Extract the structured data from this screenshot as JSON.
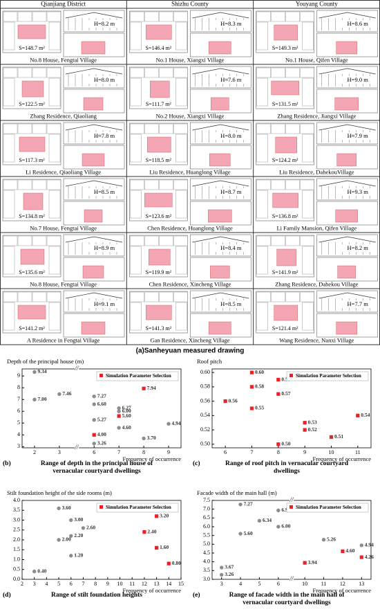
{
  "drawings": {
    "columns": [
      "Qianjiang District",
      "Shizhu County",
      "Youyang County"
    ],
    "cells": [
      [
        {
          "area": "S=148.7 m²",
          "height": "H=8.2 m",
          "name": "No.8 House, Fengtai Village"
        },
        {
          "area": "S=146.4 m²",
          "height": "H=8.3 m",
          "name": "No.1 House, Xiangxi Village"
        },
        {
          "area": "S=149.3 m²",
          "height": "H=8.6 m",
          "name": "No.1 House, Qifen Village"
        }
      ],
      [
        {
          "area": "S=122.5 m²",
          "height": "H=8.0 m",
          "name": "Zhang Residence, Qiaoliang"
        },
        {
          "area": "S=111.7 m²",
          "height": "H≈7.6 m",
          "name": "No.2 House, Xiangxi Village"
        },
        {
          "area": "S=131.5 m²",
          "height": "H=9.0 m",
          "name": "Zhang Residence, Jiangxi Village"
        }
      ],
      [
        {
          "area": "S=117.3 m²",
          "height": "H≈7.8 m",
          "name": "Li Residence, Qiaoliang Village"
        },
        {
          "area": "S=118.5 m²",
          "height": "H=8.0 m",
          "name": "Liu Residence, Huanglong Village"
        },
        {
          "area": "S=124.2 m²",
          "height": "H≈7.9 m",
          "name": "Liu Residence, DahekouVillage"
        }
      ],
      [
        {
          "area": "S=134.8 m²",
          "height": "H=8.5 m",
          "name": "No.7 House, Fengtai Village"
        },
        {
          "area": "S=123.6 m²",
          "height": "H=8.7 m",
          "name": "Chen Residence, Huanglong Village"
        },
        {
          "area": "S=136.8 m²",
          "height": "H=9.3 m",
          "name": "Li Family Mansion, Qifen Village"
        }
      ],
      [
        {
          "area": "S=135.6 m²",
          "height": "H=8.9 m",
          "name": "No.8 House, Fengtai Village"
        },
        {
          "area": "S=119.9 m²",
          "height": "H=8.4 m",
          "name": "Chen Residence, Xincheng Village"
        },
        {
          "area": "S=141.9 m²",
          "height": "H=8.2 m",
          "name": "Zhang Residence, Dahekou Village"
        }
      ],
      [
        {
          "area": "S=141.2 m²",
          "height": "H≈9.1 m",
          "name": "A Residence in Fengtai Village"
        },
        {
          "area": "S=141.3 m²",
          "height": "H=8.5 m",
          "name": "Gan Residence, Xincheng Village"
        },
        {
          "area": "S=121.4 m²",
          "height": "H=7.7 m",
          "name": "Wang Residence, Nanxi Village"
        }
      ]
    ],
    "caption": "(a)Sanheyuan measured drawing"
  },
  "chart_data": [
    {
      "type": "scatter",
      "y_label": "Depth of the principal house (m)",
      "x_label": "Frequency of occurrence",
      "panel_label": "(b)",
      "caption": "Range of depth in the principal house of vernacular courtyard dwellings",
      "legend": "upper right",
      "xlim": [
        1.5,
        9.5
      ],
      "xbreak": [
        3.5,
        5.5
      ],
      "xticks": [
        2,
        3,
        6,
        7,
        8,
        9
      ],
      "ylim": [
        2.9,
        9.6
      ],
      "yticks": [
        3,
        4,
        5,
        6,
        7,
        8,
        9
      ],
      "series": [
        {
          "color": "#8c8c8c",
          "marker": "circle",
          "x": [
            2,
            2,
            3,
            6,
            6,
            6,
            6,
            7,
            7,
            7,
            8,
            9
          ],
          "values": [
            9.34,
            7,
            7.46,
            7.27,
            6.6,
            5.27,
            3.26,
            6.27,
            6,
            4.6,
            3.7,
            4.94
          ],
          "value_labels": [
            "9.34",
            "7.00",
            "7.46",
            "7.27",
            "6.60",
            "5.27",
            "3.26",
            "6.27",
            "6.00",
            "4.60",
            "3.70",
            "4.94"
          ]
        },
        {
          "name": "Simulation Parameter Selection",
          "color": "#e8212a",
          "marker": "square",
          "x": [
            8,
            7,
            6
          ],
          "values": [
            7.94,
            5.6,
            4
          ],
          "value_labels": [
            "7.94",
            "5.60",
            "4.00"
          ]
        }
      ]
    },
    {
      "type": "scatter",
      "y_label": "Roof pitch",
      "x_label": "Frequency of occurrence",
      "panel_label": "(c)",
      "caption": "Range of roof pitch in vernacular courtyard dwellings",
      "legend": "upper right",
      "xlim": [
        5.5,
        11.5
      ],
      "xticks": [
        6,
        7,
        8,
        9,
        10,
        11
      ],
      "ylim": [
        0.495,
        0.605
      ],
      "yticks": [
        {
          "value": 0.5,
          "label": "0.50"
        },
        0.52,
        0.54,
        0.56,
        0.58,
        {
          "value": 0.6,
          "label": "0.60"
        }
      ],
      "series": [
        {
          "name": "Simulation Parameter Selection",
          "color": "#e8212a",
          "marker": "square",
          "x": [
            6,
            7,
            7,
            7,
            8,
            8,
            8,
            9,
            9,
            10,
            11
          ],
          "values": [
            0.56,
            0.6,
            0.58,
            0.55,
            0.59,
            0.57,
            0.5,
            0.53,
            0.52,
            0.51,
            0.54
          ],
          "value_labels": [
            "0.56",
            "0.60",
            "0.58",
            "0.55",
            "0.59",
            "0.57",
            "0.50",
            "0.53",
            "0.52",
            "0.51",
            "0.54"
          ]
        }
      ]
    },
    {
      "type": "scatter",
      "y_label": "Stilt foundation height of the side rooms (m)",
      "x_label": "Frequency of occurrence",
      "panel_label": "(d)",
      "caption": "Range of stilt foundation heights",
      "legend": "upper right",
      "xlim": [
        2,
        15
      ],
      "xticks": [
        2,
        3,
        4,
        5,
        6,
        7,
        8,
        9,
        10,
        11,
        12,
        13,
        14,
        15
      ],
      "ylim": [
        0,
        4
      ],
      "yticks": [
        {
          "value": 0,
          "label": "0.0"
        },
        0.5,
        {
          "value": 1,
          "label": "1.0"
        },
        1.5,
        {
          "value": 2,
          "label": "2.0"
        },
        2.5,
        {
          "value": 3,
          "label": "3.0"
        },
        3.5,
        {
          "value": 4,
          "label": "4.0"
        }
      ],
      "series": [
        {
          "color": "#8c8c8c",
          "marker": "circle",
          "x": [
            3,
            5,
            5,
            6,
            6,
            6,
            7
          ],
          "values": [
            0.4,
            3.6,
            2,
            3,
            2.2,
            1.2,
            2.6
          ],
          "value_labels": [
            "0.40",
            "3.60",
            "2.00",
            "3.00",
            "2.20",
            "1.20",
            "2.60"
          ]
        },
        {
          "name": "Simulation Parameter Selection",
          "color": "#e8212a",
          "marker": "square",
          "x": [
            12,
            13,
            13,
            14
          ],
          "values": [
            2.4,
            3.2,
            1.6,
            0.8
          ],
          "value_labels": [
            "2.40",
            "3.20",
            "1.60",
            "0.80"
          ]
        }
      ]
    },
    {
      "type": "scatter",
      "y_label": "Facade width of the main hall (m)",
      "x_label": "Frequency of occurrence",
      "panel_label": "(e)",
      "caption": "Range of facade width in the main hall of vernacular courtyard dwellings",
      "legend": "upper right",
      "xlim": [
        2.5,
        13.5
      ],
      "xbreak": [
        6.5,
        9.5
      ],
      "xticks": [
        3,
        4,
        5,
        6,
        10,
        11,
        12,
        13
      ],
      "ylim": [
        3,
        7.5
      ],
      "yticks": [
        {
          "value": 3,
          "label": "3.0"
        },
        3.5,
        {
          "value": 4,
          "label": "4.0"
        },
        4.5,
        {
          "value": 5,
          "label": "5.0"
        },
        5.5,
        {
          "value": 6,
          "label": "6.0"
        },
        6.5,
        {
          "value": 7,
          "label": "7.0"
        },
        7.5
      ],
      "series": [
        {
          "color": "#8c8c8c",
          "marker": "circle",
          "x": [
            3,
            3,
            4,
            4,
            5,
            6,
            6,
            11,
            13
          ],
          "values": [
            3.67,
            3.26,
            7.27,
            5.6,
            6.34,
            6.93,
            6,
            5.26,
            4.94
          ],
          "value_labels": [
            "3.67",
            "3.26",
            "7.27",
            "5.60",
            "6.34",
            "6.93",
            "6.00",
            "5.26",
            "4.94"
          ]
        },
        {
          "name": "Simulation Parameter Selection",
          "color": "#e8212a",
          "marker": "square",
          "x": [
            10,
            12,
            13
          ],
          "values": [
            3.94,
            4.6,
            4.26
          ],
          "value_labels": [
            "3.94",
            "4.60",
            "4.26"
          ]
        }
      ]
    }
  ]
}
